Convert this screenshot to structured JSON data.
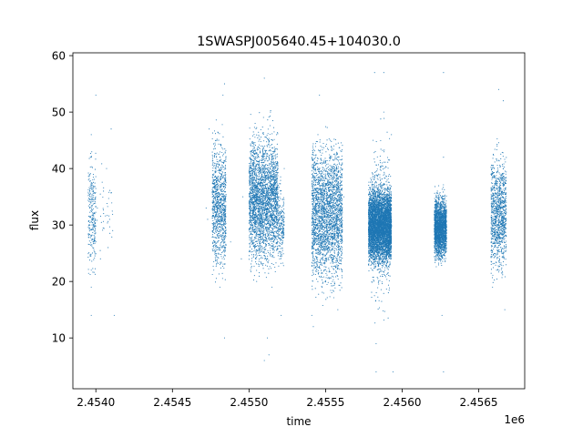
{
  "chart_data": {
    "type": "scatter",
    "title": "1SWASPJ005640.45+104030.0",
    "xlabel": "time",
    "ylabel": "flux",
    "x_offset_label": "1e6",
    "xlim": [
      2.45385,
      2.4568
    ],
    "ylim": [
      1,
      60.5
    ],
    "x_ticks": [
      2.454,
      2.4545,
      2.455,
      2.4555,
      2.456,
      2.4565
    ],
    "x_tick_labels": [
      "2.4540",
      "2.4545",
      "2.4550",
      "2.4555",
      "2.4560",
      "2.4565"
    ],
    "y_ticks": [
      10,
      20,
      30,
      40,
      50,
      60
    ],
    "y_tick_labels": [
      "10",
      "20",
      "30",
      "40",
      "50",
      "60"
    ],
    "grid": false,
    "legend": "none",
    "marker_color": "#1f77b4",
    "series": [
      {
        "points": [
          [
            2.45397,
            22
          ],
          [
            2.45397,
            28
          ],
          [
            2.45397,
            35
          ],
          [
            2.45397,
            42
          ],
          [
            2.45397,
            46
          ],
          [
            2.45397,
            19
          ],
          [
            2.45397,
            14
          ],
          [
            2.45398,
            38
          ],
          [
            2.45398,
            26
          ],
          [
            2.45398,
            31
          ],
          [
            2.454,
            53
          ],
          [
            2.45401,
            33
          ],
          [
            2.45403,
            24
          ],
          [
            2.45405,
            36
          ],
          [
            2.45407,
            40
          ],
          [
            2.45409,
            31
          ],
          [
            2.4541,
            47
          ],
          [
            2.45411,
            29
          ],
          [
            2.45412,
            14
          ],
          [
            2.45408,
            26
          ],
          [
            2.45472,
            33
          ],
          [
            2.45473,
            31
          ],
          [
            2.45474,
            47
          ],
          [
            2.45477,
            22
          ],
          [
            2.45478,
            30
          ],
          [
            2.45478,
            38
          ],
          [
            2.45479,
            45
          ],
          [
            2.4548,
            25
          ],
          [
            2.4548,
            33
          ],
          [
            2.45481,
            42
          ],
          [
            2.45481,
            19
          ],
          [
            2.45482,
            29
          ],
          [
            2.45482,
            36
          ],
          [
            2.45483,
            53
          ],
          [
            2.45484,
            55
          ],
          [
            2.45484,
            10
          ],
          [
            2.45488,
            27
          ],
          [
            2.45495,
            24
          ],
          [
            2.45496,
            35
          ],
          [
            2.45501,
            22
          ],
          [
            2.45502,
            30
          ],
          [
            2.45503,
            40
          ],
          [
            2.45504,
            48
          ],
          [
            2.45505,
            20
          ],
          [
            2.45506,
            35
          ],
          [
            2.45507,
            27
          ],
          [
            2.45508,
            44
          ],
          [
            2.45509,
            37
          ],
          [
            2.4551,
            56
          ],
          [
            2.4551,
            6
          ],
          [
            2.45511,
            31
          ],
          [
            2.45512,
            24
          ],
          [
            2.45513,
            42
          ],
          [
            2.45514,
            50
          ],
          [
            2.45515,
            19
          ],
          [
            2.45516,
            33
          ],
          [
            2.45517,
            28
          ],
          [
            2.45518,
            46
          ],
          [
            2.45512,
            10
          ],
          [
            2.45513,
            7
          ],
          [
            2.45519,
            35
          ],
          [
            2.4552,
            24
          ],
          [
            2.45521,
            14
          ],
          [
            2.45522,
            31
          ],
          [
            2.45523,
            40
          ],
          [
            2.45541,
            14
          ],
          [
            2.45542,
            12
          ],
          [
            2.45542,
            22
          ],
          [
            2.45543,
            30
          ],
          [
            2.45544,
            38
          ],
          [
            2.45545,
            46
          ],
          [
            2.45546,
            53
          ],
          [
            2.45547,
            26
          ],
          [
            2.45548,
            33
          ],
          [
            2.45549,
            41
          ],
          [
            2.4555,
            20
          ],
          [
            2.45551,
            29
          ],
          [
            2.45552,
            36
          ],
          [
            2.45553,
            45
          ],
          [
            2.45554,
            18
          ],
          [
            2.45555,
            32
          ],
          [
            2.45556,
            25
          ],
          [
            2.45557,
            40
          ],
          [
            2.45558,
            15
          ],
          [
            2.4556,
            27
          ],
          [
            2.45562,
            35
          ],
          [
            2.45578,
            23
          ],
          [
            2.45579,
            30
          ],
          [
            2.4558,
            38
          ],
          [
            2.45581,
            45
          ],
          [
            2.45582,
            57
          ],
          [
            2.45583,
            9
          ],
          [
            2.45583,
            4
          ],
          [
            2.45584,
            27
          ],
          [
            2.45585,
            34
          ],
          [
            2.45586,
            22
          ],
          [
            2.45587,
            41
          ],
          [
            2.45588,
            50
          ],
          [
            2.45588,
            57
          ],
          [
            2.45589,
            30
          ],
          [
            2.4559,
            25
          ],
          [
            2.45591,
            18
          ],
          [
            2.45592,
            37
          ],
          [
            2.45594,
            4
          ],
          [
            2.45593,
            46
          ],
          [
            2.45621,
            26
          ],
          [
            2.45622,
            33
          ],
          [
            2.45623,
            36
          ],
          [
            2.45624,
            29
          ],
          [
            2.45625,
            24
          ],
          [
            2.45626,
            31
          ],
          [
            2.45627,
            42
          ],
          [
            2.45627,
            57
          ],
          [
            2.45627,
            4
          ],
          [
            2.45626,
            14
          ],
          [
            2.45628,
            35
          ],
          [
            2.45659,
            19
          ],
          [
            2.4566,
            27
          ],
          [
            2.45661,
            35
          ],
          [
            2.45662,
            44
          ],
          [
            2.45663,
            54
          ],
          [
            2.45664,
            23
          ],
          [
            2.45665,
            31
          ],
          [
            2.45666,
            40
          ],
          [
            2.45666,
            52
          ],
          [
            2.45667,
            15
          ]
        ]
      }
    ],
    "dense_segments": [
      {
        "x": [
          2.45395,
          2.454
        ],
        "y": [
          18,
          46
        ],
        "count": 260
      },
      {
        "x": [
          2.454,
          2.45411
        ],
        "y": [
          22,
          42
        ],
        "count": 35
      },
      {
        "x": [
          2.45476,
          2.45485
        ],
        "y": [
          18,
          49
        ],
        "count": 1000
      },
      {
        "x": [
          2.455,
          2.45519
        ],
        "y": [
          19,
          50
        ],
        "count": 2800
      },
      {
        "x": [
          2.45519,
          2.45523
        ],
        "y": [
          21,
          39
        ],
        "count": 200
      },
      {
        "x": [
          2.45541,
          2.45561
        ],
        "y": [
          15,
          49
        ],
        "count": 2600
      },
      {
        "x": [
          2.45578,
          2.45593
        ],
        "y": [
          21,
          39
        ],
        "count": 5000
      },
      {
        "x": [
          2.4558,
          2.45592
        ],
        "y": [
          10,
          50
        ],
        "count": 500
      },
      {
        "x": [
          2.45621,
          2.45629
        ],
        "y": [
          22,
          37
        ],
        "count": 2200
      },
      {
        "x": [
          2.45658,
          2.45668
        ],
        "y": [
          18,
          46
        ],
        "count": 1100
      }
    ]
  }
}
